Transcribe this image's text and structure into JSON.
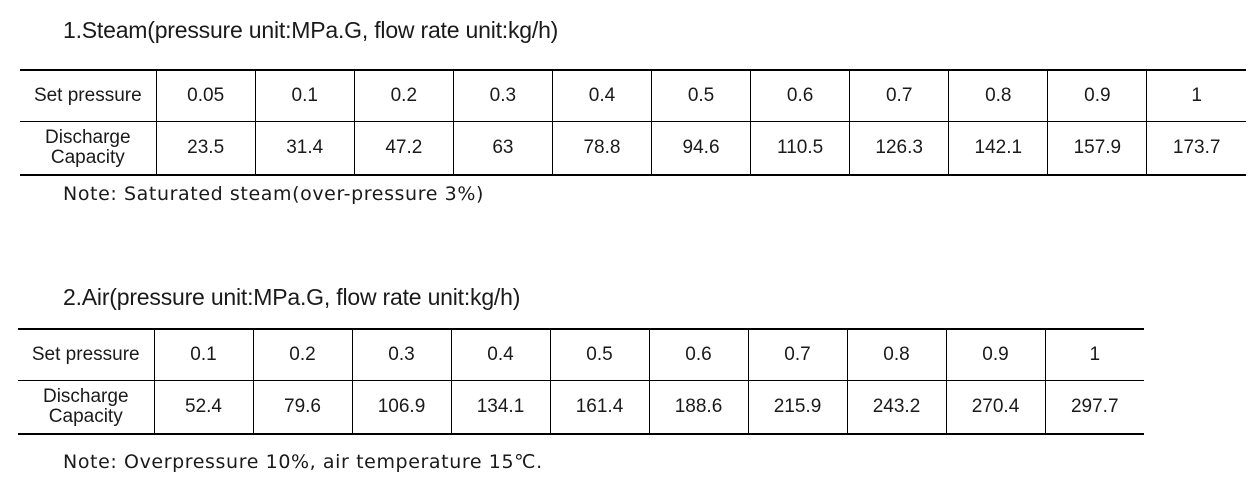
{
  "steam": {
    "title": "1.Steam(pressure unit:MPa.G, flow rate unit:kg/h)",
    "row_labels": {
      "set_pressure": "Set pressure",
      "discharge_line1": "Discharge",
      "discharge_line2": "Capacity"
    },
    "set_pressure": [
      "0.05",
      "0.1",
      "0.2",
      "0.3",
      "0.4",
      "0.5",
      "0.6",
      "0.7",
      "0.8",
      "0.9",
      "1"
    ],
    "discharge_capacity": [
      "23.5",
      "31.4",
      "47.2",
      "63",
      "78.8",
      "94.6",
      "110.5",
      "126.3",
      "142.1",
      "157.9",
      "173.7"
    ],
    "note": "Note: Saturated steam(over-pressure 3%)"
  },
  "air": {
    "title": "2.Air(pressure unit:MPa.G, flow rate unit:kg/h)",
    "row_labels": {
      "set_pressure": "Set pressure",
      "discharge_line1": "Discharge",
      "discharge_line2": "Capacity"
    },
    "set_pressure": [
      "0.1",
      "0.2",
      "0.3",
      "0.4",
      "0.5",
      "0.6",
      "0.7",
      "0.8",
      "0.9",
      "1"
    ],
    "discharge_capacity": [
      "52.4",
      "79.6",
      "106.9",
      "134.1",
      "161.4",
      "188.6",
      "215.9",
      "243.2",
      "270.4",
      "297.7"
    ],
    "note": "Note: Overpressure 10%, air temperature 15℃."
  }
}
